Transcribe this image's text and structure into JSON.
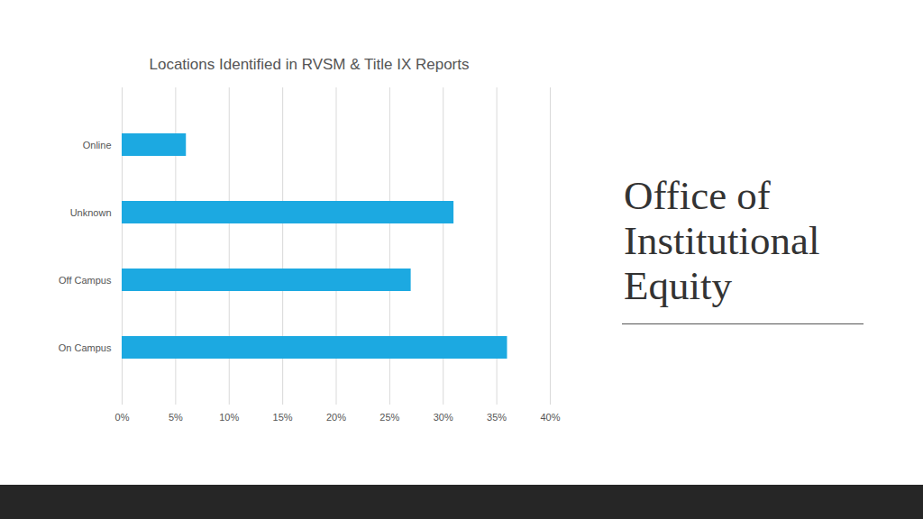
{
  "page": {
    "heading": "Office of Institutional Equity"
  },
  "chart_data": {
    "type": "bar",
    "orientation": "horizontal",
    "title": "Locations Identified in RVSM & Title IX Reports",
    "categories": [
      "Online",
      "Unknown",
      "Off Campus",
      "On Campus"
    ],
    "values": [
      6,
      31,
      27,
      36
    ],
    "color": "#1ca9e1",
    "xlim": [
      0,
      40
    ],
    "xticks": [
      {
        "value": 0,
        "label": "0%"
      },
      {
        "value": 5,
        "label": "5%"
      },
      {
        "value": 10,
        "label": "10%"
      },
      {
        "value": 15,
        "label": "15%"
      },
      {
        "value": 20,
        "label": "20%"
      },
      {
        "value": 25,
        "label": "25%"
      },
      {
        "value": 30,
        "label": "30%"
      },
      {
        "value": 35,
        "label": "35%"
      },
      {
        "value": 40,
        "label": "40%"
      }
    ],
    "grid": true
  }
}
